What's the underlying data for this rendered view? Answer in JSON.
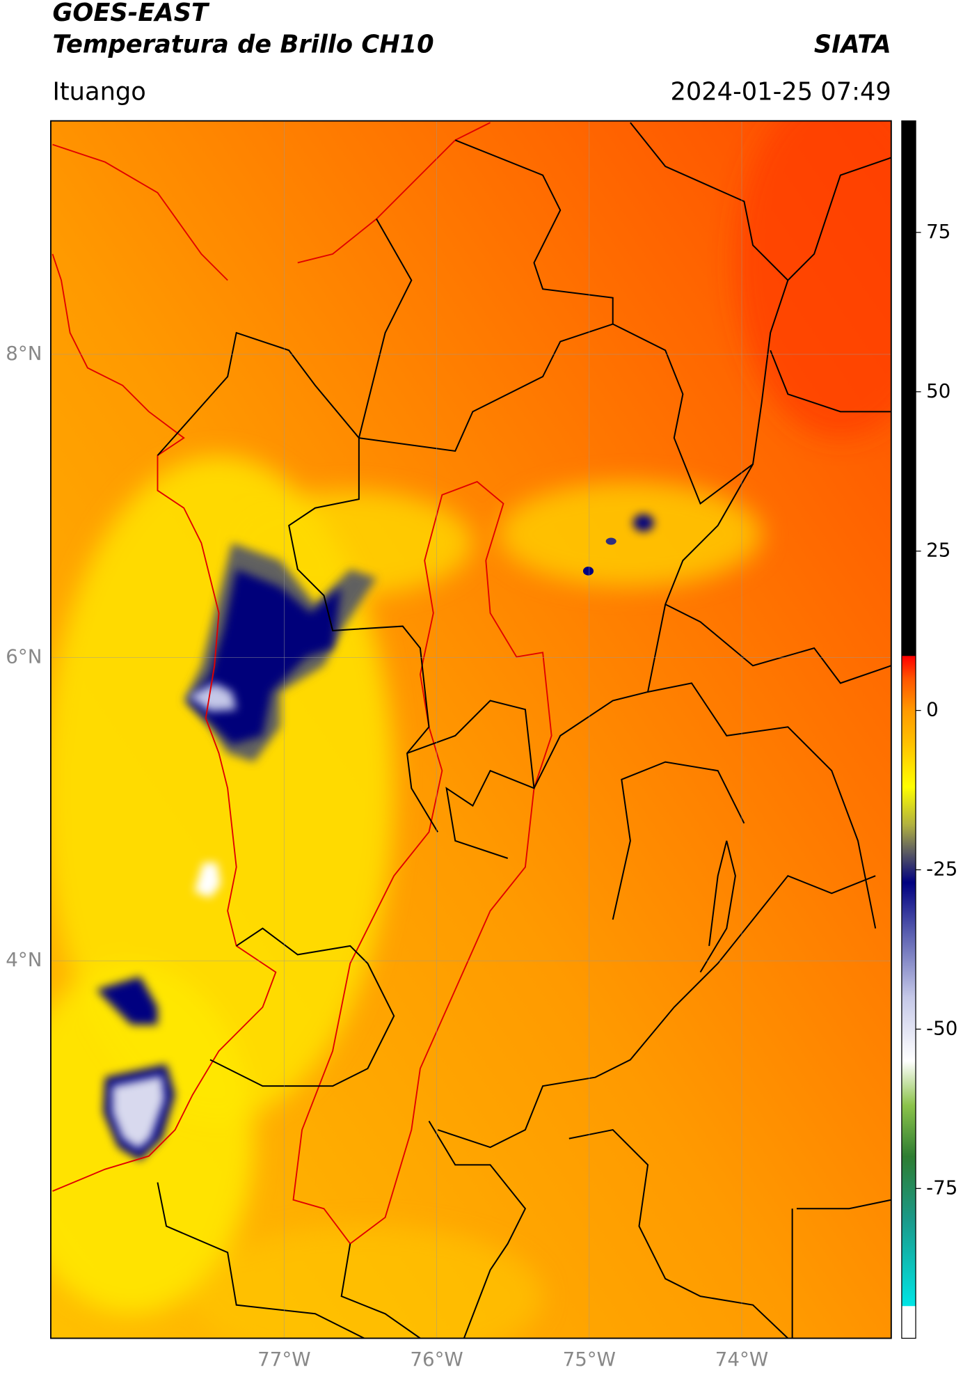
{
  "header": {
    "title": "GOES-EAST",
    "subtitle": "Temperatura de Brillo CH10",
    "brand": "SIATA",
    "location": "Ituango",
    "datetime": "2024-01-25 07:49"
  },
  "map": {
    "xlim": [
      -78.53,
      -73.02
    ],
    "ylim": [
      1.51,
      9.54
    ],
    "xticks": [
      {
        "value": -77,
        "label": "77°W"
      },
      {
        "value": -76,
        "label": "76°W"
      },
      {
        "value": -75,
        "label": "75°W"
      },
      {
        "value": -74,
        "label": "74°W"
      }
    ],
    "yticks": [
      {
        "value": 4,
        "label": "4°N"
      },
      {
        "value": 6,
        "label": "6°N"
      },
      {
        "value": 8,
        "label": "8°N"
      }
    ],
    "grid": true
  },
  "colorbar": {
    "clim": [
      -98.5,
      92.5
    ],
    "ticks": [
      -75,
      -50,
      -25,
      0,
      25,
      50,
      75
    ],
    "stops": [
      {
        "value": -98.5,
        "color": "#ffffff"
      },
      {
        "value": -93.5,
        "color": "#ffffff"
      },
      {
        "value": -93.4,
        "color": "#00e5e5"
      },
      {
        "value": -80,
        "color": "#1a9a8a"
      },
      {
        "value": -70,
        "color": "#2e7d32"
      },
      {
        "value": -62,
        "color": "#8bc34a"
      },
      {
        "value": -55,
        "color": "#ffffff"
      },
      {
        "value": -45,
        "color": "#c5c8e8"
      },
      {
        "value": -35,
        "color": "#5a5fb0"
      },
      {
        "value": -27,
        "color": "#000080"
      },
      {
        "value": -22,
        "color": "#606060"
      },
      {
        "value": -18,
        "color": "#b0b040"
      },
      {
        "value": -12,
        "color": "#ffff00"
      },
      {
        "value": -5,
        "color": "#ffc000"
      },
      {
        "value": 0,
        "color": "#ff9900"
      },
      {
        "value": 5,
        "color": "#ff5500"
      },
      {
        "value": 8.5,
        "color": "#ff0000"
      },
      {
        "value": 8.6,
        "color": "#000000"
      },
      {
        "value": 92.5,
        "color": "#000000"
      }
    ]
  }
}
